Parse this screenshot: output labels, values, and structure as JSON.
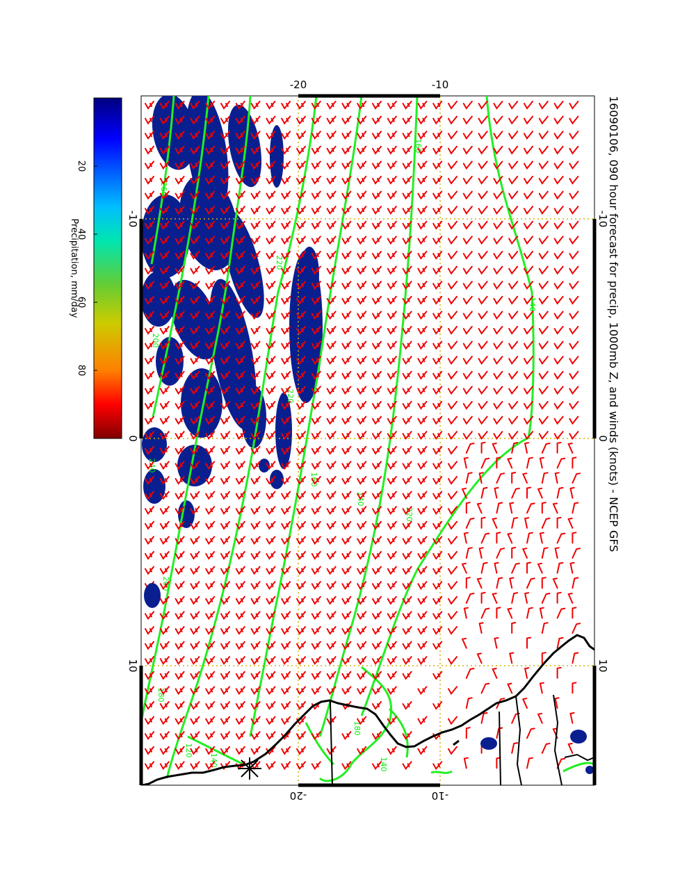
{
  "title": "16090106, 090 hour forecast for precip, 1000mb Z, and winds (knots) - NCEP GFS",
  "map": {
    "top_axis_labels": [
      "-20",
      "-10"
    ],
    "bottom_axis_labels": [
      "-20",
      "-10"
    ],
    "left_axis_labels": [
      "-10",
      "0",
      "10"
    ],
    "right_axis_labels": [
      "-10",
      "0",
      "10"
    ],
    "contour_labels": [
      "160",
      "140",
      "220",
      "260",
      "220",
      "200",
      "240",
      "160",
      "140",
      "220",
      "200",
      "180",
      "140",
      "120",
      "140",
      "180"
    ],
    "colors": {
      "precip": "#0a1f8f",
      "contour": "#22ee22",
      "wind_barb": "#ee0000",
      "grid": "#d4b000",
      "coast": "#000000"
    }
  },
  "colorbar": {
    "label": "Precipitation, mm/day",
    "tick_labels": [
      "20",
      "40",
      "60",
      "80"
    ],
    "tick_values": [
      20,
      40,
      60,
      80
    ],
    "range": [
      0,
      100
    ],
    "colormap": [
      "#00007f",
      "#0000ff",
      "#00bfff",
      "#00e5b0",
      "#66cc33",
      "#cccc00",
      "#ff8000",
      "#ff0000",
      "#7f0000"
    ]
  }
}
